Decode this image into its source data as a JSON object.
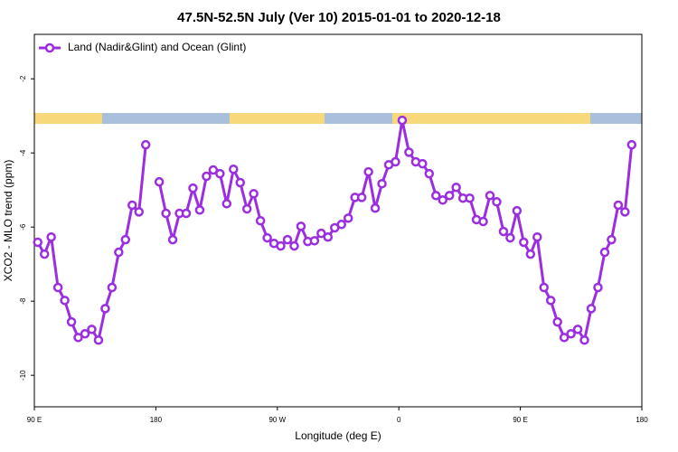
{
  "chart_data": {
    "type": "line",
    "title": "47.5N-52.5N July (Ver 10)   2015-01-01 to 2020-12-18",
    "xlabel": "Longitude (deg E)",
    "ylabel": "XCO2 - MLO trend (ppm)",
    "xlim": [
      90,
      540
    ],
    "ylim": [
      -0.8,
      -10.85
    ],
    "xticks": [
      {
        "value": 90,
        "label": "90 E"
      },
      {
        "value": 180,
        "label": "180"
      },
      {
        "value": 270,
        "label": "90 W"
      },
      {
        "value": 360,
        "label": "0"
      },
      {
        "value": 450,
        "label": "90 E"
      },
      {
        "value": 540,
        "label": "180"
      }
    ],
    "yticks": [
      -2,
      -4,
      -6,
      -8,
      -10
    ],
    "legend": "upper left",
    "x": [
      92.5,
      97.5,
      102.5,
      107.5,
      112.5,
      117.5,
      122.5,
      127.5,
      132.5,
      137.5,
      142.5,
      147.5,
      152.5,
      157.5,
      162.5,
      167.5,
      172.5,
      177.5,
      182.5,
      187.5,
      192.5,
      197.5,
      202.5,
      207.5,
      212.5,
      217.5,
      222.5,
      227.5,
      232.5,
      237.5,
      242.5,
      247.5,
      252.5,
      257.5,
      262.5,
      267.5,
      272.5,
      277.5,
      282.5,
      287.5,
      292.5,
      297.5,
      302.5,
      307.5,
      312.5,
      317.5,
      322.5,
      327.5,
      332.5,
      337.5,
      342.5,
      347.5,
      352.5,
      357.5,
      362.5,
      367.5,
      372.5,
      377.5,
      382.5,
      387.5,
      392.5,
      397.5,
      402.5,
      407.5,
      412.5,
      417.5,
      422.5,
      427.5,
      432.5,
      437.5,
      442.5,
      447.5,
      452.5,
      457.5,
      462.5,
      467.5,
      472.5,
      477.5,
      482.5,
      487.5,
      492.5,
      497.5,
      502.5,
      507.5,
      512.5,
      517.5,
      522.5,
      527.5,
      532.5
    ],
    "series": [
      {
        "name": "Land (Nadir&Glint) and Ocean (Glint)",
        "color": "#9b2ee0",
        "values": [
          -6.41,
          -6.73,
          -6.27,
          -7.63,
          -7.98,
          -8.56,
          -8.98,
          -8.88,
          -8.76,
          -9.05,
          -8.2,
          -7.63,
          -6.68,
          -6.34,
          -5.41,
          -5.59,
          -3.78,
          null,
          -4.78,
          -5.63,
          -6.34,
          -5.63,
          -5.63,
          -4.95,
          -5.54,
          -4.63,
          -4.46,
          -4.56,
          -5.37,
          -4.44,
          -4.8,
          -5.51,
          -5.1,
          -5.83,
          -6.29,
          -6.44,
          -6.51,
          -6.34,
          -6.51,
          -5.98,
          -6.39,
          -6.37,
          -6.17,
          -6.27,
          -6.02,
          -5.93,
          -5.76,
          -5.2,
          -5.2,
          -4.51,
          -5.49,
          -4.83,
          -4.32,
          -4.24,
          -3.12,
          -3.98,
          -4.24,
          -4.29,
          -4.56,
          -5.15,
          -5.27,
          -5.15,
          -4.93,
          -5.22,
          -5.22,
          -5.8,
          -5.85,
          -5.15,
          -5.32,
          -6.12,
          -6.29,
          -5.56,
          -6.41,
          -6.73,
          -6.27,
          -7.63,
          -7.98,
          -8.56,
          -8.98,
          -8.88,
          -8.76,
          -9.05,
          -8.2,
          -7.63,
          -6.68,
          -6.34,
          -5.41,
          -5.59,
          -3.78
        ]
      }
    ]
  }
}
